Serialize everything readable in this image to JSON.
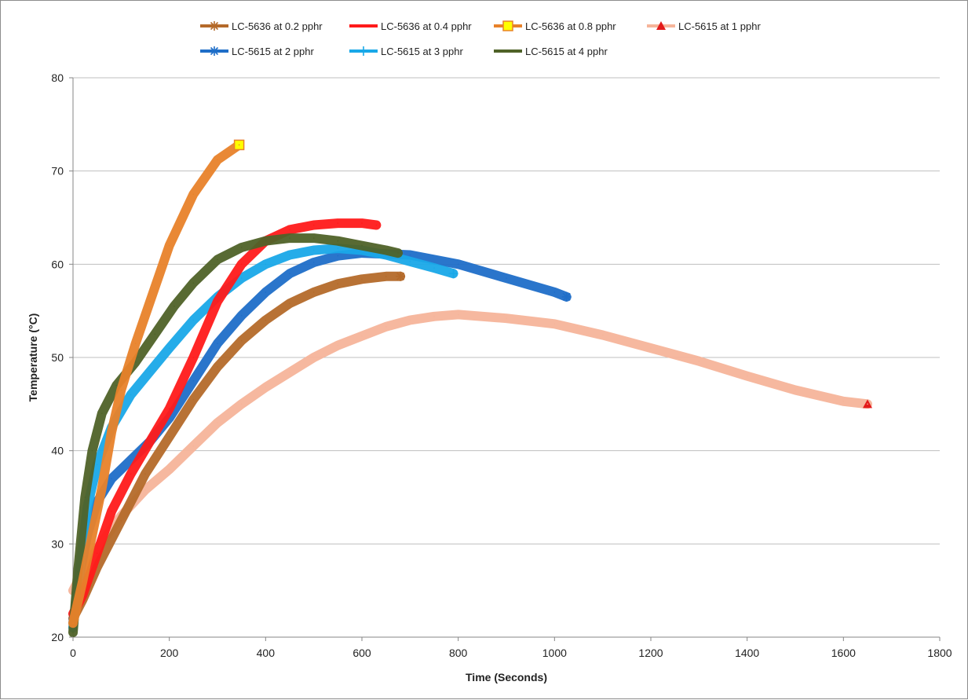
{
  "chart_data": {
    "type": "line",
    "title": "",
    "xlabel": "Time (Seconds)",
    "ylabel": "Temperature (°C)",
    "xlim": [
      0,
      1800
    ],
    "ylim": [
      20,
      80
    ],
    "x_ticks": [
      "0",
      "200",
      "400",
      "600",
      "800",
      "1000",
      "1200",
      "1400",
      "1600",
      "1800"
    ],
    "y_ticks": [
      "20",
      "30",
      "40",
      "50",
      "60",
      "70",
      "80"
    ],
    "grid": "horizontal",
    "legend_position": "top",
    "series": [
      {
        "name": "LC-5636 at 0.2 pphr",
        "color": "#b46a2a",
        "marker": "asterisk",
        "points": [
          [
            0,
            22
          ],
          [
            20,
            24
          ],
          [
            50,
            27.5
          ],
          [
            100,
            32.5
          ],
          [
            150,
            37.5
          ],
          [
            200,
            41.5
          ],
          [
            250,
            45.5
          ],
          [
            300,
            49
          ],
          [
            350,
            51.8
          ],
          [
            400,
            54
          ],
          [
            450,
            55.8
          ],
          [
            500,
            57
          ],
          [
            550,
            57.9
          ],
          [
            600,
            58.4
          ],
          [
            650,
            58.7
          ],
          [
            680,
            58.7
          ]
        ]
      },
      {
        "name": "LC-5636 at 0.4 pphr",
        "color": "#ff1a1a",
        "marker": "none",
        "points": [
          [
            0,
            22.5
          ],
          [
            20,
            24.5
          ],
          [
            50,
            29
          ],
          [
            80,
            33.5
          ],
          [
            120,
            37.5
          ],
          [
            160,
            41
          ],
          [
            200,
            44.5
          ],
          [
            250,
            50
          ],
          [
            300,
            56
          ],
          [
            350,
            60
          ],
          [
            400,
            62.5
          ],
          [
            450,
            63.7
          ],
          [
            500,
            64.2
          ],
          [
            550,
            64.4
          ],
          [
            600,
            64.4
          ],
          [
            630,
            64.2
          ]
        ]
      },
      {
        "name": "LC-5636 at 0.8 pphr",
        "color": "#e8822a",
        "marker": "square",
        "points": [
          [
            0,
            21.5
          ],
          [
            20,
            26
          ],
          [
            40,
            31
          ],
          [
            60,
            36
          ],
          [
            80,
            42
          ],
          [
            100,
            46.5
          ],
          [
            130,
            51.5
          ],
          [
            160,
            56
          ],
          [
            200,
            62
          ],
          [
            250,
            67.5
          ],
          [
            300,
            71.2
          ],
          [
            345,
            72.8
          ]
        ]
      },
      {
        "name": "LC-5615 at 1 pphr",
        "color": "#f6b49a",
        "marker": "triangle",
        "points": [
          [
            0,
            25
          ],
          [
            20,
            27
          ],
          [
            50,
            29.5
          ],
          [
            100,
            33
          ],
          [
            150,
            35.8
          ],
          [
            200,
            38
          ],
          [
            250,
            40.5
          ],
          [
            300,
            43
          ],
          [
            350,
            45
          ],
          [
            400,
            46.8
          ],
          [
            450,
            48.4
          ],
          [
            500,
            50
          ],
          [
            550,
            51.3
          ],
          [
            600,
            52.3
          ],
          [
            650,
            53.3
          ],
          [
            700,
            54
          ],
          [
            750,
            54.4
          ],
          [
            800,
            54.6
          ],
          [
            900,
            54.2
          ],
          [
            1000,
            53.6
          ],
          [
            1100,
            52.4
          ],
          [
            1200,
            51
          ],
          [
            1300,
            49.6
          ],
          [
            1400,
            48
          ],
          [
            1500,
            46.5
          ],
          [
            1600,
            45.3
          ],
          [
            1650,
            45
          ]
        ]
      },
      {
        "name": "LC-5615 at 2 pphr",
        "color": "#1f6ec8",
        "marker": "asterisk",
        "points": [
          [
            0,
            21.5
          ],
          [
            15,
            27
          ],
          [
            30,
            31
          ],
          [
            50,
            34.5
          ],
          [
            80,
            37
          ],
          [
            120,
            39
          ],
          [
            160,
            41
          ],
          [
            200,
            43.5
          ],
          [
            250,
            47.5
          ],
          [
            300,
            51.5
          ],
          [
            350,
            54.5
          ],
          [
            400,
            57
          ],
          [
            450,
            59
          ],
          [
            500,
            60.2
          ],
          [
            550,
            60.9
          ],
          [
            600,
            61.2
          ],
          [
            700,
            61
          ],
          [
            800,
            60
          ],
          [
            900,
            58.5
          ],
          [
            1000,
            57
          ],
          [
            1025,
            56.5
          ]
        ]
      },
      {
        "name": "LC-5615 at 3 pphr",
        "color": "#19a8e8",
        "marker": "plus",
        "points": [
          [
            0,
            21
          ],
          [
            15,
            28
          ],
          [
            30,
            34
          ],
          [
            50,
            38.5
          ],
          [
            80,
            42.5
          ],
          [
            120,
            46
          ],
          [
            160,
            48.5
          ],
          [
            200,
            51
          ],
          [
            250,
            54
          ],
          [
            300,
            56.5
          ],
          [
            350,
            58.5
          ],
          [
            400,
            60
          ],
          [
            450,
            61
          ],
          [
            500,
            61.5
          ],
          [
            550,
            61.7
          ],
          [
            600,
            61.5
          ],
          [
            650,
            61
          ],
          [
            700,
            60.3
          ],
          [
            750,
            59.6
          ],
          [
            790,
            59
          ]
        ]
      },
      {
        "name": "LC-5615 at 4 pphr",
        "color": "#4f6228",
        "marker": "line",
        "points": [
          [
            0,
            20.5
          ],
          [
            10,
            27
          ],
          [
            25,
            35
          ],
          [
            40,
            40
          ],
          [
            60,
            44
          ],
          [
            90,
            47
          ],
          [
            130,
            49.5
          ],
          [
            170,
            52.5
          ],
          [
            210,
            55.5
          ],
          [
            250,
            58
          ],
          [
            300,
            60.5
          ],
          [
            350,
            61.8
          ],
          [
            400,
            62.5
          ],
          [
            450,
            62.8
          ],
          [
            500,
            62.8
          ],
          [
            550,
            62.5
          ],
          [
            600,
            62
          ],
          [
            650,
            61.5
          ],
          [
            675,
            61.2
          ]
        ]
      }
    ]
  }
}
